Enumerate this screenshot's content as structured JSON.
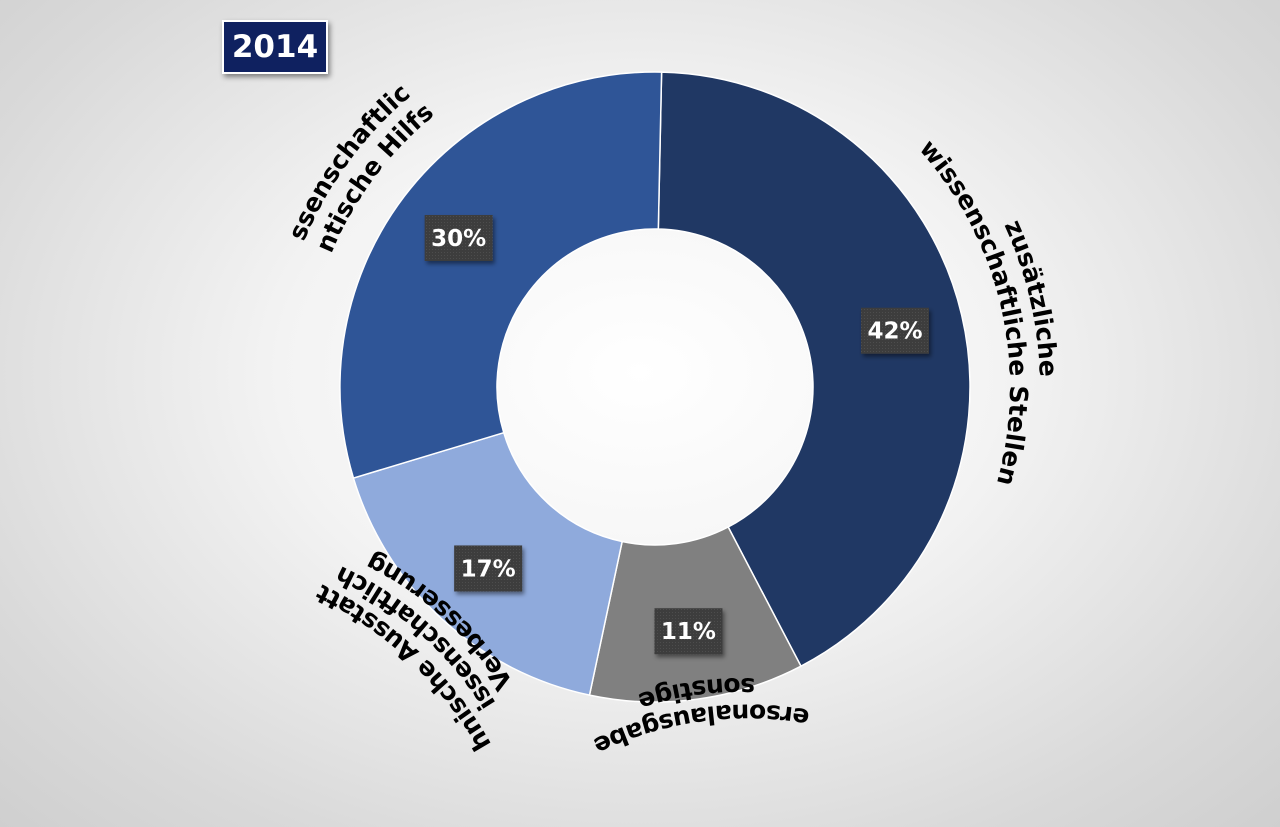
{
  "year_label": "2014",
  "chart_data": {
    "type": "pie",
    "variant": "donut",
    "title": "2014",
    "unit": "%",
    "slices": [
      {
        "label_lines": [
          "zusätzliche",
          "wissenschaftliche Stellen"
        ],
        "value": 42,
        "value_label": "42%",
        "color": "#203864"
      },
      {
        "label_lines": [
          "sonstige",
          "Personalausgaben"
        ],
        "value": 11,
        "value_label": "11%",
        "color": "#808080"
      },
      {
        "label_lines": [
          "Verbesserung",
          "wissenschaftlich/",
          "technische Ausstattung"
        ],
        "value": 17,
        "value_label": "17%",
        "color": "#8faadc"
      },
      {
        "label_lines": [
          "wissenschaftliche/",
          "studentische Hilfskräfte"
        ],
        "value": 30,
        "value_label": "30%",
        "color": "#2f5597"
      }
    ],
    "value_label_background": "#404040",
    "slice_border_color": "#ffffff"
  }
}
